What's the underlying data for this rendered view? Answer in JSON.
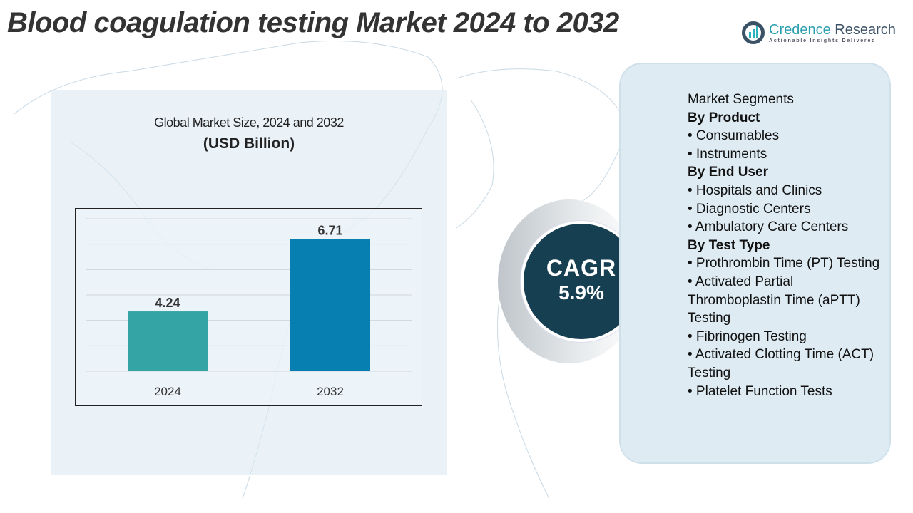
{
  "title": "Blood coagulation testing Market 2024 to 2032",
  "logo": {
    "name_part1": "Credence",
    "name_part2": "Research",
    "tagline": "Actionable Insights Delivered"
  },
  "chart_data": {
    "type": "bar",
    "title": "Global Market Size, 2024 and 2032",
    "subtitle": "(USD Billion)",
    "categories": [
      "2024",
      "2032"
    ],
    "values": [
      4.24,
      6.71
    ],
    "data_labels": [
      "4.24",
      "6.71"
    ],
    "colors": [
      "#35a4a5",
      "#0780b1"
    ],
    "ylim": [
      2.2,
      7.4
    ],
    "grid": true,
    "legend": "none"
  },
  "cagr": {
    "label": "CAGR",
    "value": "5.9%"
  },
  "segments": {
    "heading": "Market Segments",
    "lines": [
      {
        "text": "By Product",
        "bold": true
      },
      {
        "text": "•  Consumables"
      },
      {
        "text": "•  Instruments"
      },
      {
        "text": "By End User",
        "bold": true
      },
      {
        "text": "•  Hospitals and Clinics"
      },
      {
        "text": "•  Diagnostic Centers"
      },
      {
        "text": "• Ambulatory Care Centers"
      },
      {
        "text": "By Test Type",
        "bold": true
      },
      {
        "text": "• Prothrombin Time (PT) Testing"
      },
      {
        "text": "• Activated Partial Thromboplastin Time (aPTT) Testing"
      },
      {
        "text": "• Fibrinogen Testing"
      },
      {
        "text": "• Activated Clotting Time (ACT) Testing"
      },
      {
        "text": "• Platelet Function Tests"
      }
    ]
  }
}
